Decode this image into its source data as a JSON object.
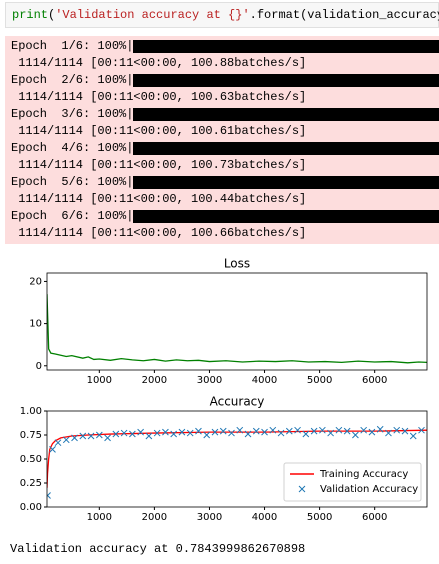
{
  "code": {
    "tokens": [
      "print",
      "(",
      "'Validation accuracy at {}'",
      ".format(validation_accuracy))"
    ]
  },
  "progress": [
    {
      "label": "Epoch  1/6: 100%|",
      "stats": " 1114/1114 [00:11<00:00, 100.88batches/s]"
    },
    {
      "label": "Epoch  2/6: 100%|",
      "stats": " 1114/1114 [00:11<00:00, 100.63batches/s]"
    },
    {
      "label": "Epoch  3/6: 100%|",
      "stats": " 1114/1114 [00:11<00:00, 100.61batches/s]"
    },
    {
      "label": "Epoch  4/6: 100%|",
      "stats": " 1114/1114 [00:11<00:00, 100.73batches/s]"
    },
    {
      "label": "Epoch  5/6: 100%|",
      "stats": " 1114/1114 [00:11<00:00, 100.44batches/s]"
    },
    {
      "label": "Epoch  6/6: 100%|",
      "stats": " 1114/1114 [00:11<00:00, 100.66batches/s]"
    }
  ],
  "chart_data": [
    {
      "type": "line",
      "title": "Loss",
      "series": [
        {
          "color": "#008000",
          "x": [
            50,
            80,
            120,
            200,
            300,
            400,
            500,
            700,
            800,
            900,
            1000,
            1200,
            1400,
            1600,
            1800,
            2000,
            2200,
            2400,
            2600,
            2800,
            3000,
            3300,
            3600,
            3900,
            4200,
            4500,
            4800,
            5100,
            5400,
            5700,
            6000,
            6300,
            6600,
            6800,
            6950
          ],
          "values": [
            17,
            4,
            3,
            2.8,
            2.5,
            2.2,
            2.4,
            1.8,
            2.1,
            1.5,
            1.6,
            1.3,
            1.7,
            1.4,
            1.2,
            1.5,
            1.1,
            1.4,
            1.2,
            1.3,
            1.0,
            1.2,
            0.9,
            1.1,
            1.0,
            1.2,
            0.9,
            1.0,
            0.8,
            1.1,
            0.9,
            1.0,
            0.7,
            0.9,
            0.8
          ]
        }
      ],
      "xlim": [
        50,
        6950
      ],
      "xticks": [
        1000,
        2000,
        3000,
        4000,
        5000,
        6000
      ],
      "ylim": [
        -1,
        22
      ],
      "yticks": [
        0,
        10,
        20
      ]
    },
    {
      "type": "line",
      "title": "Accuracy",
      "series": [
        {
          "name": "Training Accuracy",
          "color": "#ff0000",
          "marker": "line",
          "x": [
            50,
            60,
            80,
            100,
            150,
            200,
            300,
            500,
            800,
            1200,
            2000,
            3000,
            4000,
            5000,
            6000,
            6950
          ],
          "values": [
            0.2,
            0.35,
            0.5,
            0.6,
            0.66,
            0.69,
            0.72,
            0.74,
            0.75,
            0.76,
            0.77,
            0.78,
            0.78,
            0.79,
            0.79,
            0.8
          ]
        },
        {
          "name": "Validation Accuracy",
          "color": "#1f77b4",
          "marker": "x",
          "x": [
            60,
            150,
            250,
            400,
            550,
            700,
            850,
            1000,
            1150,
            1300,
            1450,
            1600,
            1750,
            1900,
            2050,
            2200,
            2350,
            2500,
            2650,
            2800,
            2950,
            3100,
            3250,
            3400,
            3550,
            3700,
            3850,
            4000,
            4150,
            4300,
            4450,
            4600,
            4750,
            4900,
            5050,
            5200,
            5350,
            5500,
            5650,
            5800,
            5950,
            6100,
            6250,
            6400,
            6550,
            6700,
            6850
          ],
          "values": [
            0.12,
            0.6,
            0.67,
            0.7,
            0.72,
            0.74,
            0.74,
            0.75,
            0.72,
            0.76,
            0.77,
            0.76,
            0.78,
            0.74,
            0.77,
            0.78,
            0.76,
            0.78,
            0.77,
            0.79,
            0.75,
            0.78,
            0.79,
            0.77,
            0.8,
            0.76,
            0.79,
            0.78,
            0.8,
            0.77,
            0.79,
            0.8,
            0.76,
            0.79,
            0.8,
            0.77,
            0.8,
            0.79,
            0.75,
            0.8,
            0.78,
            0.81,
            0.77,
            0.8,
            0.79,
            0.74,
            0.8
          ]
        }
      ],
      "xlim": [
        50,
        6950
      ],
      "xticks": [
        1000,
        2000,
        3000,
        4000,
        5000,
        6000
      ],
      "ylim": [
        0,
        1
      ],
      "yticks": [
        {
          "value": 0,
          "label": "0.00"
        },
        {
          "value": 0.25,
          "label": "0.25"
        },
        {
          "value": 0.5,
          "label": "0.50"
        },
        {
          "value": 0.75,
          "label": "0.75"
        },
        {
          "value": 1,
          "label": "1.00"
        }
      ],
      "legend": "lower right"
    }
  ],
  "result": "Validation accuracy at 0.7843999862670898"
}
